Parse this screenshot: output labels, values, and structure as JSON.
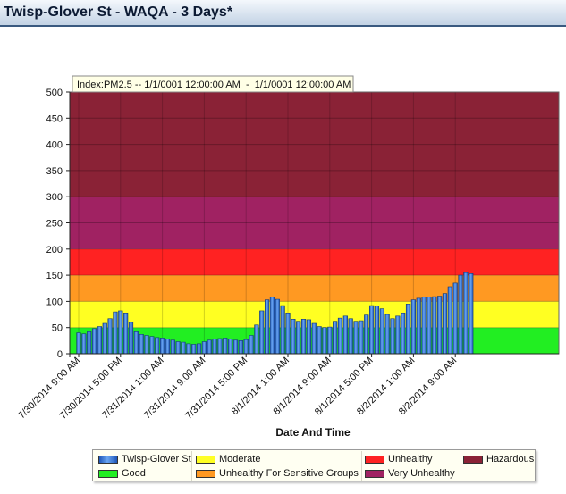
{
  "header": {
    "title": "Twisp-Glover St - WAQA - 3 Days*"
  },
  "tooltip": {
    "text": "Index:PM2.5 -- 1/1/0001 12:00:00 AM  -  1/1/0001 12:00:00 AM"
  },
  "chart_data": {
    "type": "bar",
    "title": "Twisp-Glover St - WAQA - 3 Days*",
    "xlabel": "Date And Time",
    "ylabel": "",
    "ylim": [
      0,
      500
    ],
    "yticks": [
      0,
      50,
      100,
      150,
      200,
      250,
      300,
      350,
      400,
      450,
      500
    ],
    "xticks": [
      "7/30/2014 9:00 AM",
      "7/30/2014 5:00 PM",
      "7/31/2014 1:00 AM",
      "7/31/2014 9:00 AM",
      "7/31/2014 5:00 PM",
      "8/1/2014 1:00 AM",
      "8/1/2014 9:00 AM",
      "8/1/2014 5:00 PM",
      "8/2/2014 1:00 AM",
      "8/2/2014 9:00 AM"
    ],
    "grid": true,
    "legend_position": "bottom",
    "bands": [
      {
        "name": "Good",
        "from": 0,
        "to": 50,
        "color": "#22ee22"
      },
      {
        "name": "Moderate",
        "from": 50,
        "to": 100,
        "color": "#ffff22"
      },
      {
        "name": "Unhealthy For Sensitive Groups",
        "from": 100,
        "to": 150,
        "color": "#ff9922"
      },
      {
        "name": "Unhealthy",
        "from": 150,
        "to": 200,
        "color": "#ff2222"
      },
      {
        "name": "Very Unhealthy",
        "from": 200,
        "to": 300,
        "color": "#a02262"
      },
      {
        "name": "Hazardous",
        "from": 300,
        "to": 500,
        "color": "#8a2236"
      }
    ],
    "series": [
      {
        "name": "Twisp-Glover St",
        "color": "#3b7fdc",
        "x_start": "7/30/2014 9:00 AM",
        "interval_hours": 1,
        "values": [
          40,
          38,
          42,
          48,
          52,
          58,
          67,
          80,
          82,
          78,
          60,
          42,
          37,
          35,
          33,
          31,
          30,
          28,
          26,
          23,
          22,
          19,
          18,
          19,
          23,
          26,
          28,
          29,
          30,
          28,
          26,
          25,
          27,
          35,
          55,
          82,
          103,
          108,
          104,
          92,
          78,
          66,
          62,
          66,
          65,
          58,
          52,
          50,
          51,
          62,
          68,
          72,
          67,
          62,
          63,
          74,
          92,
          91,
          86,
          75,
          67,
          72,
          78,
          95,
          103,
          106,
          108,
          108,
          109,
          110,
          115,
          128,
          135,
          150,
          155,
          153
        ]
      }
    ]
  },
  "legend": {
    "items": [
      {
        "label": "Twisp-Glover St",
        "color": "#3b7fdc"
      },
      {
        "label": "Good",
        "color": "#22ee22"
      },
      {
        "label": "Moderate",
        "color": "#ffff22"
      },
      {
        "label": "Unhealthy For Sensitive Groups",
        "color": "#ff9922"
      },
      {
        "label": "Unhealthy",
        "color": "#ff2222"
      },
      {
        "label": "Very Unhealthy",
        "color": "#a02262"
      },
      {
        "label": "Hazardous",
        "color": "#8a2236"
      }
    ]
  }
}
